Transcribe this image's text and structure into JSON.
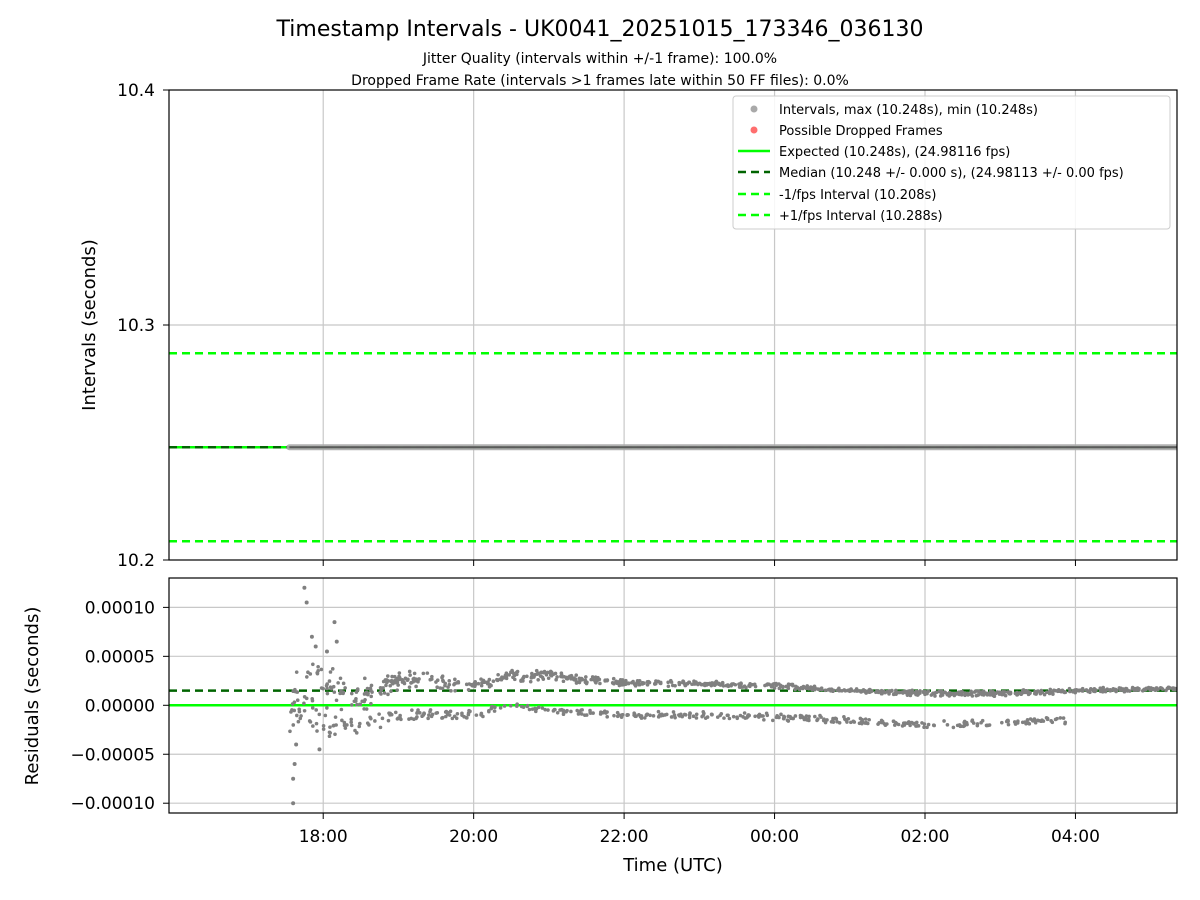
{
  "figure": {
    "title": "Timestamp Intervals - UK0041_20251015_173346_036130",
    "subtitle1": "Jitter Quality (intervals within +/-1 frame): 100.0%",
    "subtitle2": "Dropped Frame Rate (intervals >1 frames late within 50 FF files): 0.0%"
  },
  "colors": {
    "expected": "#00ff00",
    "median": "#006400",
    "interval_dots": "#a9a9a9",
    "dropped": "#ff5555",
    "residual_dots": "#808080",
    "grid": "#c8c8c8"
  },
  "chart_data": [
    {
      "type": "scatter",
      "name": "intervals",
      "title": "",
      "xlabel": "",
      "ylabel": "Intervals (seconds)",
      "xlim_hours": [
        -1.05,
        12.35
      ],
      "x_start_hours": 0.55,
      "ylim": [
        10.2,
        10.4
      ],
      "yticks": [
        10.2,
        10.3,
        10.4
      ],
      "ytick_labels": [
        "10.2",
        "10.3",
        "10.4"
      ],
      "xticks_hours": [
        1,
        3,
        5,
        7,
        9,
        11
      ],
      "grid": true,
      "legend_position": "top-right",
      "legend": [
        "Intervals, max (10.248s), min (10.248s)",
        "Possible Dropped Frames",
        "Expected (10.248s), (24.98116 fps)",
        "Median (10.248 +/- 0.000 s), (24.98113 +/- 0.00 fps)",
        "-1/fps Interval (10.208s)",
        "+1/fps Interval (10.288s)"
      ],
      "series": [
        {
          "name": "Intervals",
          "kind": "points",
          "value": 10.248
        },
        {
          "name": "Expected",
          "kind": "hline",
          "value": 10.248
        },
        {
          "name": "Median",
          "kind": "hline",
          "value": 10.248
        },
        {
          "name": "-1/fps Interval",
          "kind": "hline",
          "value": 10.208
        },
        {
          "name": "+1/fps Interval",
          "kind": "hline",
          "value": 10.288
        }
      ]
    },
    {
      "type": "scatter",
      "name": "residuals",
      "title": "",
      "xlabel": "Time (UTC)",
      "ylabel": "Residuals (seconds)",
      "xlim_hours": [
        -1.05,
        12.35
      ],
      "ylim": [
        -0.00011,
        0.00013
      ],
      "yticks": [
        -0.0001,
        -5e-05,
        0,
        5e-05,
        0.0001
      ],
      "ytick_labels": [
        "−0.00010",
        "−0.00005",
        "0.00000",
        "0.00005",
        "0.00010"
      ],
      "xticks_hours": [
        1,
        3,
        5,
        7,
        9,
        11
      ],
      "xtick_labels": [
        "18:00",
        "20:00",
        "22:00",
        "00:00",
        "02:00",
        "04:00"
      ],
      "grid": true,
      "series": [
        {
          "name": "Expected",
          "kind": "hline",
          "value": 0.0
        },
        {
          "name": "Median",
          "kind": "hline",
          "value": 1.5e-05
        },
        {
          "name": "Residuals (upper band)",
          "kind": "band",
          "x_hours": [
            0.55,
            1.0,
            1.5,
            2.0,
            2.5,
            3.0,
            3.5,
            4.0,
            5.0,
            6.0,
            7.0,
            8.0,
            9.0,
            10.0,
            11.0,
            12.35
          ],
          "center": [
            1e-05,
            2e-05,
            1e-05,
            2.5e-05,
            2.5e-05,
            2e-05,
            3e-05,
            3e-05,
            2.3e-05,
            2.2e-05,
            2e-05,
            1.5e-05,
            1.2e-05,
            1.2e-05,
            1.5e-05,
            1.7e-05
          ],
          "spread": [
            4e-05,
            3e-05,
            2e-05,
            1e-05,
            1e-05,
            7e-06,
            7e-06,
            6e-06,
            4e-06,
            3e-06,
            3e-06,
            3e-06,
            3e-06,
            3e-06,
            3e-06,
            2e-06
          ]
        },
        {
          "name": "Residuals (lower band)",
          "kind": "band",
          "x_hours": [
            0.65,
            1.0,
            1.5,
            2.0,
            2.5,
            3.0,
            3.5,
            4.0,
            5.0,
            6.0,
            7.0,
            8.0,
            9.0,
            10.0,
            10.9
          ],
          "center": [
            -1e-05,
            -2e-05,
            -2e-05,
            -1e-05,
            -1e-05,
            -1e-05,
            0.0,
            -5e-06,
            -1e-05,
            -1e-05,
            -1.2e-05,
            -1.5e-05,
            -2e-05,
            -1.8e-05,
            -1.5e-05
          ],
          "spread": [
            2e-05,
            1.5e-05,
            1e-05,
            8e-06,
            6e-06,
            5e-06,
            4e-06,
            4e-06,
            4e-06,
            4e-06,
            4e-06,
            4e-06,
            4e-06,
            4e-06,
            4e-06
          ]
        },
        {
          "name": "Residual outliers",
          "kind": "points",
          "x_hours": [
            0.6,
            0.6,
            0.62,
            0.64,
            0.75,
            0.78,
            0.85,
            0.9,
            0.95,
            1.05,
            1.15,
            1.18
          ],
          "y": [
            -0.0001,
            -7.5e-05,
            -6e-05,
            -4e-05,
            0.00012,
            0.000105,
            7e-05,
            6e-05,
            -4.5e-05,
            5.5e-05,
            8.5e-05,
            6.5e-05
          ]
        }
      ]
    }
  ]
}
